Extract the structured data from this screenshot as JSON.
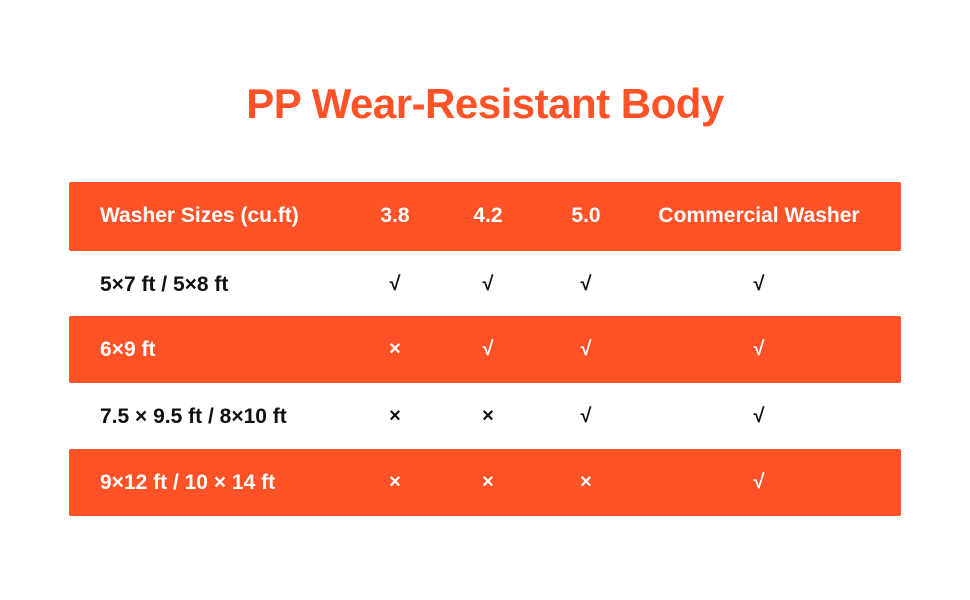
{
  "title": "PP Wear-Resistant Body",
  "colors": {
    "accent": "#FF5226",
    "text_dark": "#111111",
    "text_light": "#ffffff"
  },
  "table": {
    "headers": [
      "Washer Sizes (cu.ft)",
      "3.8",
      "4.2",
      "5.0",
      "Commercial Washer"
    ],
    "rows": [
      {
        "size": "5×7 ft / 5×8 ft",
        "cells": [
          "√",
          "√",
          "√",
          "√"
        ]
      },
      {
        "size": "6×9 ft",
        "cells": [
          "×",
          "√",
          "√",
          "√"
        ]
      },
      {
        "size": "7.5 × 9.5 ft / 8×10 ft",
        "cells": [
          "×",
          "×",
          "√",
          "√"
        ]
      },
      {
        "size": "9×12 ft / 10 × 14 ft",
        "cells": [
          "×",
          "×",
          "×",
          "√"
        ]
      }
    ]
  }
}
